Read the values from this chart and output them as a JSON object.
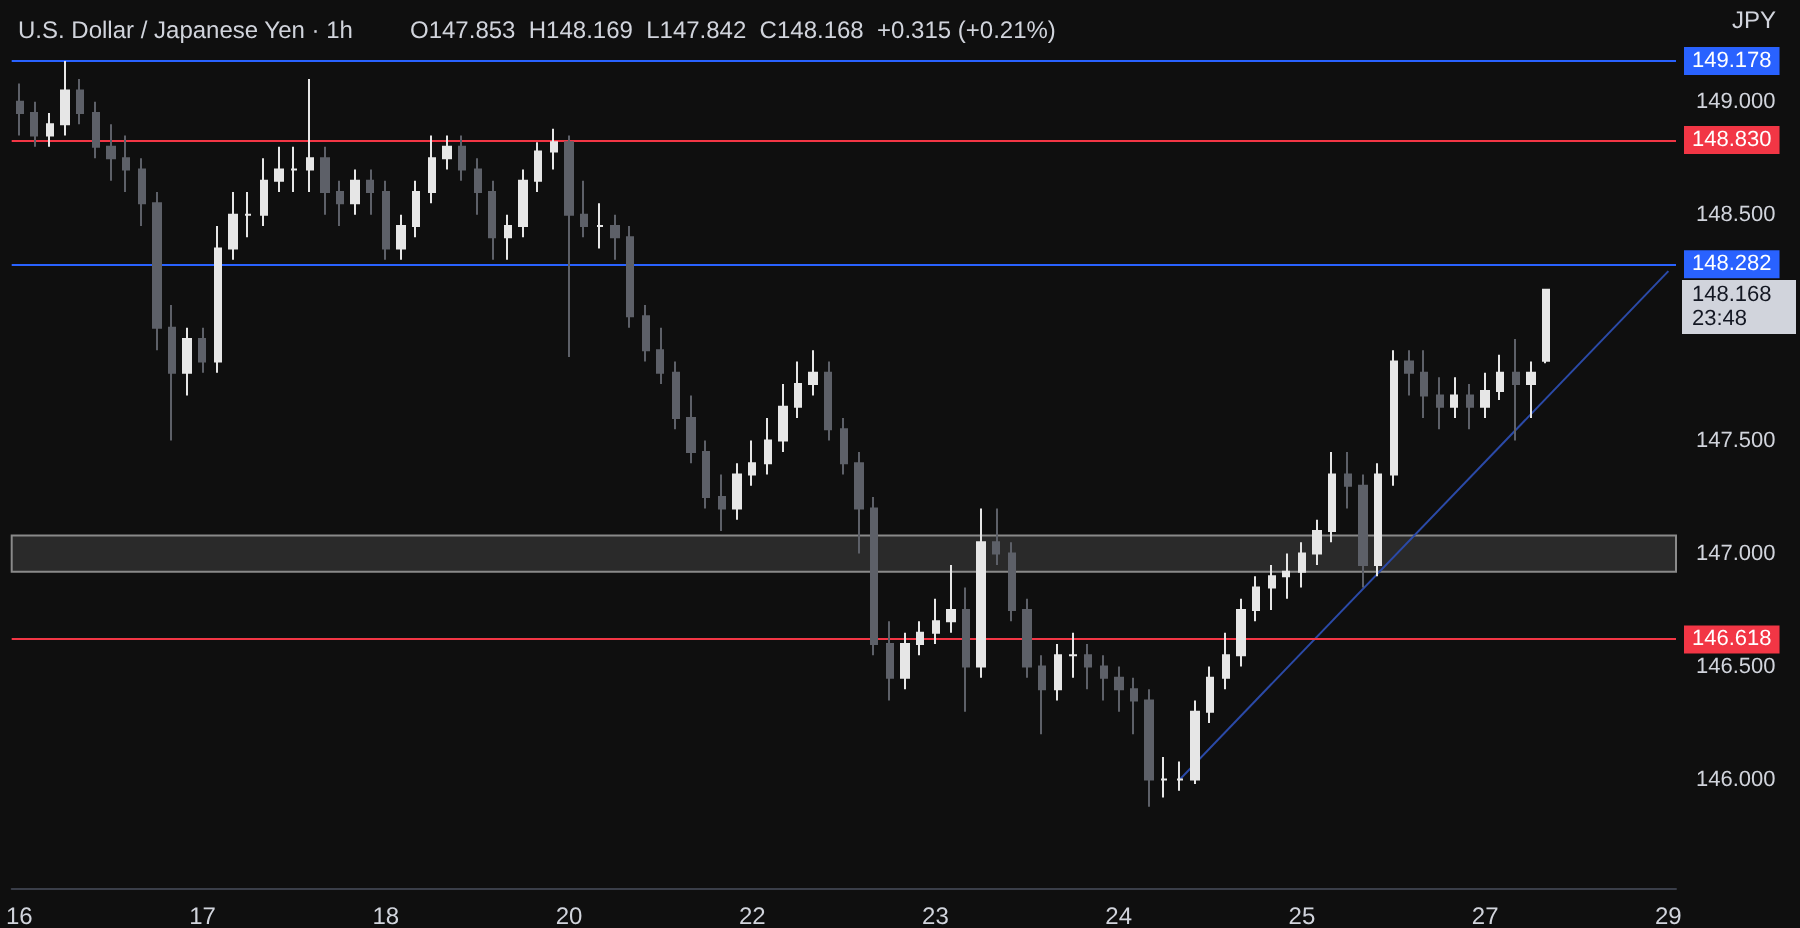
{
  "chart_data": {
    "type": "candlestick",
    "title": "U.S. Dollar / Japanese Yen · 1h",
    "subtitle": "O147.853  H148.169  L147.842  C148.168  +0.315 (+0.21%)",
    "categories": [
      "16",
      null,
      null,
      null,
      null,
      null,
      null,
      null,
      null,
      null,
      null,
      null,
      "17",
      null,
      null,
      null,
      null,
      null,
      null,
      null,
      null,
      null,
      null,
      null,
      "18",
      null,
      null,
      null,
      null,
      null,
      null,
      null,
      null,
      null,
      null,
      null,
      "20",
      null,
      null,
      null,
      null,
      null,
      null,
      null,
      null,
      null,
      null,
      null,
      "22",
      null,
      null,
      null,
      null,
      null,
      null,
      null,
      null,
      null,
      null,
      null,
      "23",
      null,
      null,
      null,
      null,
      null,
      null,
      null,
      null,
      null,
      null,
      null,
      "24",
      null,
      null,
      null,
      null,
      null,
      null,
      null,
      null,
      null,
      null,
      null,
      "25",
      null,
      null,
      null,
      null,
      null,
      null,
      null,
      null,
      null,
      null,
      null,
      "27",
      null,
      null,
      null,
      null,
      null,
      null,
      null,
      null,
      null,
      null,
      null,
      "29"
    ],
    "series": [
      {
        "type": "candlestick",
        "colors": [
          "#5d6068",
          "#5d6068",
          "#e6e6e6",
          "#e6e6e6",
          "#5d6068",
          "#5d6068",
          "#5d6068",
          "#5d6068",
          "#5d6068",
          "#5d6068",
          "#5d6068",
          "#e6e6e6",
          "#5d6068",
          "#e6e6e6",
          "#e6e6e6",
          "#e6e6e6",
          "#e6e6e6",
          "#e6e6e6",
          "#e6e6e6",
          "#e6e6e6",
          "#5d6068",
          "#5d6068",
          "#e6e6e6",
          "#5d6068",
          "#5d6068",
          "#e6e6e6",
          "#e6e6e6",
          "#e6e6e6",
          "#e6e6e6",
          "#5d6068",
          "#5d6068",
          "#5d6068",
          "#e6e6e6",
          "#e6e6e6",
          "#e6e6e6",
          "#e6e6e6",
          "#5d6068",
          "#5d6068",
          "#e6e6e6",
          "#5d6068",
          "#5d6068",
          "#5d6068",
          "#5d6068",
          "#5d6068",
          "#5d6068",
          "#5d6068",
          "#5d6068",
          "#e6e6e6",
          "#e6e6e6",
          "#e6e6e6",
          "#e6e6e6",
          "#e6e6e6",
          "#e6e6e6",
          "#5d6068",
          "#5d6068",
          "#5d6068",
          "#5d6068",
          "#5d6068",
          "#e6e6e6",
          "#e6e6e6",
          "#e6e6e6",
          "#e6e6e6",
          "#5d6068",
          "#e6e6e6",
          "#5d6068",
          "#5d6068",
          "#5d6068",
          "#5d6068",
          "#e6e6e6",
          "#e6e6e6",
          "#5d6068",
          "#5d6068",
          "#5d6068",
          "#5d6068",
          "#5d6068",
          "#e6e6e6",
          "#e6e6e6",
          "#e6e6e6",
          "#e6e6e6",
          "#e6e6e6",
          "#e6e6e6",
          "#e6e6e6",
          "#e6e6e6",
          "#e6e6e6",
          "#e6e6e6",
          "#e6e6e6",
          "#e6e6e6",
          "#5d6068",
          "#5d6068",
          "#e6e6e6",
          "#e6e6e6",
          "#5d6068",
          "#5d6068",
          "#5d6068",
          "#e6e6e6",
          "#5d6068",
          "#e6e6e6",
          "#e6e6e6",
          "#5d6068",
          "#e6e6e6",
          "#e6e6e6",
          null,
          null,
          null,
          null,
          null,
          null,
          null,
          null
        ],
        "ohlc": [
          [
            149.0,
            149.08,
            148.85,
            148.95
          ],
          [
            148.95,
            149.0,
            148.8,
            148.85
          ],
          [
            148.85,
            148.95,
            148.8,
            148.9
          ],
          [
            148.9,
            149.18,
            148.85,
            149.05
          ],
          [
            149.05,
            149.1,
            148.9,
            148.95
          ],
          [
            148.95,
            149.0,
            148.75,
            148.8
          ],
          [
            148.8,
            148.9,
            148.65,
            148.75
          ],
          [
            148.75,
            148.85,
            148.6,
            148.7
          ],
          [
            148.7,
            148.75,
            148.45,
            148.55
          ],
          [
            148.55,
            148.6,
            147.9,
            148.0
          ],
          [
            148.0,
            148.1,
            147.5,
            147.8
          ],
          [
            147.8,
            148.0,
            147.7,
            147.95
          ],
          [
            147.95,
            148.0,
            147.8,
            147.85
          ],
          [
            147.85,
            148.45,
            147.8,
            148.35
          ],
          [
            148.35,
            148.6,
            148.3,
            148.5
          ],
          [
            148.5,
            148.6,
            148.4,
            148.5
          ],
          [
            148.5,
            148.75,
            148.45,
            148.65
          ],
          [
            148.65,
            148.8,
            148.6,
            148.7
          ],
          [
            148.7,
            148.8,
            148.6,
            148.7
          ],
          [
            148.7,
            149.1,
            148.6,
            148.75
          ],
          [
            148.75,
            148.8,
            148.5,
            148.6
          ],
          [
            148.6,
            148.65,
            148.45,
            148.55
          ],
          [
            148.55,
            148.7,
            148.5,
            148.65
          ],
          [
            148.65,
            148.7,
            148.5,
            148.6
          ],
          [
            148.6,
            148.65,
            148.3,
            148.35
          ],
          [
            148.35,
            148.5,
            148.3,
            148.45
          ],
          [
            148.45,
            148.65,
            148.4,
            148.6
          ],
          [
            148.6,
            148.85,
            148.55,
            148.75
          ],
          [
            148.75,
            148.85,
            148.7,
            148.8
          ],
          [
            148.8,
            148.85,
            148.65,
            148.7
          ],
          [
            148.7,
            148.75,
            148.5,
            148.6
          ],
          [
            148.6,
            148.65,
            148.3,
            148.4
          ],
          [
            148.4,
            148.5,
            148.3,
            148.45
          ],
          [
            148.45,
            148.7,
            148.4,
            148.65
          ],
          [
            148.65,
            148.82,
            148.6,
            148.78
          ],
          [
            148.78,
            148.88,
            148.7,
            148.82
          ],
          [
            148.82,
            148.85,
            147.87,
            148.5
          ],
          [
            148.5,
            148.65,
            148.4,
            148.45
          ],
          [
            148.45,
            148.55,
            148.35,
            148.45
          ],
          [
            148.45,
            148.5,
            148.3,
            148.4
          ],
          [
            148.4,
            148.45,
            148.0,
            148.05
          ],
          [
            148.05,
            148.1,
            147.85,
            147.9
          ],
          [
            147.9,
            148.0,
            147.75,
            147.8
          ],
          [
            147.8,
            147.85,
            147.55,
            147.6
          ],
          [
            147.6,
            147.7,
            147.4,
            147.45
          ],
          [
            147.45,
            147.5,
            147.2,
            147.25
          ],
          [
            147.25,
            147.35,
            147.1,
            147.2
          ],
          [
            147.2,
            147.4,
            147.15,
            147.35
          ],
          [
            147.35,
            147.5,
            147.3,
            147.4
          ],
          [
            147.4,
            147.6,
            147.35,
            147.5
          ],
          [
            147.5,
            147.75,
            147.45,
            147.65
          ],
          [
            147.65,
            147.85,
            147.6,
            147.75
          ],
          [
            147.75,
            147.9,
            147.7,
            147.8
          ],
          [
            147.8,
            147.85,
            147.5,
            147.55
          ],
          [
            147.55,
            147.6,
            147.35,
            147.4
          ],
          [
            147.4,
            147.45,
            147.0,
            147.2
          ],
          [
            147.2,
            147.25,
            146.55,
            146.6
          ],
          [
            146.6,
            146.7,
            146.35,
            146.45
          ],
          [
            146.45,
            146.65,
            146.4,
            146.6
          ],
          [
            146.6,
            146.7,
            146.55,
            146.65
          ],
          [
            146.65,
            146.8,
            146.6,
            146.7
          ],
          [
            146.7,
            146.95,
            146.65,
            146.75
          ],
          [
            146.75,
            146.85,
            146.3,
            146.5
          ],
          [
            146.5,
            147.2,
            146.45,
            147.05
          ],
          [
            147.05,
            147.2,
            146.95,
            147.0
          ],
          [
            147.0,
            147.05,
            146.7,
            146.75
          ],
          [
            146.75,
            146.8,
            146.45,
            146.5
          ],
          [
            146.5,
            146.55,
            146.2,
            146.4
          ],
          [
            146.4,
            146.6,
            146.35,
            146.55
          ],
          [
            146.55,
            146.65,
            146.45,
            146.55
          ],
          [
            146.55,
            146.6,
            146.4,
            146.5
          ],
          [
            146.5,
            146.55,
            146.35,
            146.45
          ],
          [
            146.45,
            146.5,
            146.3,
            146.4
          ],
          [
            146.4,
            146.45,
            146.2,
            146.35
          ],
          [
            146.35,
            146.4,
            145.88,
            146.0
          ],
          [
            146.0,
            146.1,
            145.92,
            146.0
          ],
          [
            146.0,
            146.08,
            145.95,
            146.0
          ],
          [
            146.0,
            146.35,
            145.98,
            146.3
          ],
          [
            146.3,
            146.5,
            146.25,
            146.45
          ],
          [
            146.45,
            146.65,
            146.4,
            146.55
          ],
          [
            146.55,
            146.8,
            146.5,
            146.75
          ],
          [
            146.75,
            146.9,
            146.7,
            146.85
          ],
          [
            146.85,
            146.95,
            146.75,
            146.9
          ],
          [
            146.9,
            147.0,
            146.8,
            146.92
          ],
          [
            146.92,
            147.05,
            146.85,
            147.0
          ],
          [
            147.0,
            147.15,
            146.95,
            147.1
          ],
          [
            147.1,
            147.45,
            147.05,
            147.35
          ],
          [
            147.35,
            147.45,
            147.2,
            147.3
          ],
          [
            147.3,
            147.35,
            146.85,
            146.95
          ],
          [
            146.95,
            147.4,
            146.9,
            147.35
          ],
          [
            147.35,
            147.9,
            147.3,
            147.85
          ],
          [
            147.85,
            147.9,
            147.7,
            147.8
          ],
          [
            147.8,
            147.9,
            147.6,
            147.7
          ],
          [
            147.7,
            147.78,
            147.55,
            147.65
          ],
          [
            147.65,
            147.78,
            147.6,
            147.7
          ],
          [
            147.7,
            147.75,
            147.55,
            147.65
          ],
          [
            147.65,
            147.8,
            147.6,
            147.72
          ],
          [
            147.72,
            147.88,
            147.68,
            147.8
          ],
          [
            147.8,
            147.95,
            147.5,
            147.75
          ],
          [
            147.75,
            147.85,
            147.6,
            147.8
          ],
          [
            147.853,
            148.169,
            147.842,
            148.168
          ],
          null,
          null,
          null,
          null,
          null,
          null,
          null,
          null
        ]
      },
      {
        "type": "line",
        "color": "#2b4aa8",
        "values": [
          null,
          null,
          null,
          null,
          null,
          null,
          null,
          null,
          null,
          null,
          null,
          null,
          null,
          null,
          null,
          null,
          null,
          null,
          null,
          null,
          null,
          null,
          null,
          null,
          null,
          null,
          null,
          null,
          null,
          null,
          null,
          null,
          null,
          null,
          null,
          null,
          null,
          null,
          null,
          null,
          null,
          null,
          null,
          null,
          null,
          null,
          null,
          null,
          null,
          null,
          null,
          null,
          null,
          null,
          null,
          null,
          null,
          null,
          null,
          null,
          null,
          null,
          null,
          null,
          null,
          null,
          null,
          null,
          null,
          null,
          null,
          null,
          null,
          null,
          null,
          null,
          146.0,
          null,
          null,
          null,
          null,
          null,
          null,
          null,
          null,
          null,
          null,
          null,
          null,
          null,
          null,
          null,
          null,
          null,
          null,
          null,
          null,
          null,
          null,
          null,
          null,
          null,
          null,
          null,
          null,
          null,
          null,
          null,
          148.25
        ]
      }
    ],
    "ylim": [
      145.52,
      149.45
    ],
    "yticks": [
      {
        "value": 146.0,
        "label": "146.000"
      },
      {
        "value": 146.5,
        "label": "146.500"
      },
      {
        "value": 147.0,
        "label": "147.000"
      },
      {
        "value": 147.5,
        "label": "147.500"
      },
      {
        "value": 148.5,
        "label": "148.500"
      },
      {
        "value": 149.0,
        "label": "149.000"
      }
    ],
    "grid": false,
    "ref_lines": [
      {
        "axis": "y",
        "value": 149.178,
        "label": "149.178",
        "color": "#2962ff"
      },
      {
        "axis": "y",
        "value": 148.83,
        "label": "148.830",
        "color": "#f23645"
      },
      {
        "axis": "y",
        "value": 148.282,
        "label": "148.282",
        "color": "#2962ff"
      },
      {
        "axis": "y",
        "value": 146.618,
        "label": "146.618",
        "color": "#f23645"
      }
    ],
    "bands": [
      {
        "axis": "y",
        "from": 146.92,
        "to": 147.08,
        "color": "#2a2a2a"
      }
    ],
    "annotations": [
      "148.168",
      "23:48",
      "JPY"
    ]
  }
}
